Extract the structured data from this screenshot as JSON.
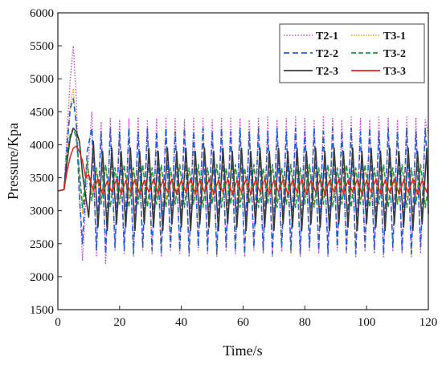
{
  "chart_data": {
    "type": "line",
    "title": "",
    "xlabel": "Time/s",
    "ylabel": "Pressure/Kpa",
    "xlim": [
      0,
      120
    ],
    "ylim": [
      1500,
      6000
    ],
    "xticks": [
      0,
      20,
      40,
      60,
      80,
      100,
      120
    ],
    "yticks": [
      1500,
      2000,
      2500,
      3000,
      3500,
      4000,
      4500,
      5000,
      5500,
      6000
    ],
    "grid": false,
    "legend": "top-right",
    "series": [
      {
        "name": "T2-1",
        "color": "#d14ad6",
        "dash": "1.5,2",
        "width": 1.4,
        "x": [
          0,
          2,
          3,
          4,
          5,
          6,
          7,
          8,
          9.5,
          11,
          12.5,
          14,
          15.5,
          17,
          18.5,
          20,
          21.5,
          23,
          24.5,
          26,
          27.5,
          29,
          30.5,
          32,
          33.5,
          35,
          36.5,
          38,
          39.5,
          41,
          42.5,
          44,
          45.5,
          47,
          48.5,
          50,
          51.5,
          53,
          54.5,
          56,
          57.5,
          59,
          60.5,
          62,
          63.5,
          65,
          66.5,
          68,
          69.5,
          71,
          72.5,
          74,
          75.5,
          77,
          78.5,
          80,
          81.5,
          83,
          84.5,
          86,
          87.5,
          89,
          90.5,
          92,
          93.5,
          95,
          96.5,
          98,
          99.5,
          101,
          102.5,
          104,
          105.5,
          107,
          108.5,
          110,
          111.5,
          113,
          114.5,
          116,
          117.5,
          119,
          120
        ],
        "y": [
          3300,
          3320,
          4200,
          5000,
          5500,
          4700,
          3200,
          2250,
          3500,
          4500,
          2300,
          4350,
          2200,
          4400,
          2400,
          4380,
          2350,
          4400,
          2300,
          4420,
          2400,
          4380,
          2350,
          4400,
          2300,
          4420,
          2380,
          4400,
          2350,
          4380,
          2300,
          4420,
          2400,
          4400,
          2350,
          4380,
          2300,
          4400,
          2380,
          4420,
          2350,
          4400,
          2300,
          4380,
          2400,
          4400,
          2350,
          4420,
          2300,
          4380,
          2380,
          4400,
          2350,
          4420,
          2300,
          4400,
          2380,
          4380,
          2350,
          4420,
          2300,
          4400,
          2400,
          4380,
          2350,
          4420,
          2300,
          4400,
          2380,
          4380,
          2350,
          4420,
          2300,
          4400,
          2380,
          4380,
          2350,
          4420,
          2300,
          4400,
          2350,
          4380,
          4150
        ]
      },
      {
        "name": "T3-1",
        "color": "#e0a800",
        "dash": "1.5,1.5",
        "width": 1.4,
        "x": [
          0,
          2,
          3,
          4,
          5,
          6,
          7,
          8,
          9.5,
          11,
          12.5,
          14,
          15.5,
          17,
          18.5,
          20,
          21.5,
          23,
          24.5,
          26,
          27.5,
          29,
          30.5,
          32,
          33.5,
          35,
          36.5,
          38,
          39.5,
          41,
          42.5,
          44,
          45.5,
          47,
          48.5,
          50,
          51.5,
          53,
          54.5,
          56,
          57.5,
          59,
          60.5,
          62,
          63.5,
          65,
          66.5,
          68,
          69.5,
          71,
          72.5,
          74,
          75.5,
          77,
          78.5,
          80,
          81.5,
          83,
          84.5,
          86,
          87.5,
          89,
          90.5,
          92,
          93.5,
          95,
          96.5,
          98,
          99.5,
          101,
          102.5,
          104,
          105.5,
          107,
          108.5,
          110,
          111.5,
          113,
          114.5,
          116,
          117.5,
          119,
          120
        ],
        "y": [
          3300,
          3320,
          3900,
          4600,
          4850,
          4300,
          3500,
          2950,
          3700,
          3250,
          3600,
          3150,
          3650,
          3200,
          3600,
          3100,
          3650,
          3200,
          3600,
          3150,
          3650,
          3100,
          3600,
          3200,
          3650,
          3150,
          3600,
          3100,
          3650,
          3200,
          3600,
          3150,
          3650,
          3100,
          3600,
          3200,
          3650,
          3150,
          3600,
          3100,
          3650,
          3200,
          3600,
          3150,
          3650,
          3100,
          3600,
          3200,
          3650,
          3150,
          3600,
          3100,
          3650,
          3200,
          3600,
          3150,
          3650,
          3100,
          3600,
          3200,
          3650,
          3150,
          3600,
          3100,
          3650,
          3200,
          3600,
          3150,
          3650,
          3100,
          3600,
          3200,
          3650,
          3150,
          3600,
          3100,
          3650,
          3200,
          3600,
          3150,
          3650,
          3100,
          3300
        ]
      },
      {
        "name": "T2-2",
        "color": "#1f5fd6",
        "dash": "7,4",
        "width": 1.6,
        "x": [
          0,
          2,
          3,
          4,
          5,
          6,
          7,
          8,
          9.5,
          11,
          12.5,
          14,
          15.5,
          17,
          18.5,
          20,
          21.5,
          23,
          24.5,
          26,
          27.5,
          29,
          30.5,
          32,
          33.5,
          35,
          36.5,
          38,
          39.5,
          41,
          42.5,
          44,
          45.5,
          47,
          48.5,
          50,
          51.5,
          53,
          54.5,
          56,
          57.5,
          59,
          60.5,
          62,
          63.5,
          65,
          66.5,
          68,
          69.5,
          71,
          72.5,
          74,
          75.5,
          77,
          78.5,
          80,
          81.5,
          83,
          84.5,
          86,
          87.5,
          89,
          90.5,
          92,
          93.5,
          95,
          96.5,
          98,
          99.5,
          101,
          102.5,
          104,
          105.5,
          107,
          108.5,
          110,
          111.5,
          113,
          114.5,
          116,
          117.5,
          119,
          120
        ],
        "y": [
          3300,
          3320,
          4000,
          4550,
          4700,
          4300,
          3200,
          2500,
          3900,
          4250,
          2400,
          4200,
          2350,
          4250,
          2450,
          4200,
          2400,
          4250,
          2350,
          4200,
          2450,
          4250,
          2400,
          4200,
          2350,
          4250,
          2450,
          4200,
          2400,
          4250,
          2350,
          4200,
          2450,
          4250,
          2400,
          4200,
          2350,
          4250,
          2450,
          4200,
          2400,
          4250,
          2350,
          4200,
          2450,
          4250,
          2400,
          4200,
          2350,
          4250,
          2450,
          4200,
          2400,
          4250,
          2350,
          4200,
          2450,
          4250,
          2400,
          4200,
          2350,
          4250,
          2450,
          4200,
          2400,
          4250,
          2350,
          4200,
          2450,
          4250,
          2400,
          4200,
          2350,
          4250,
          2450,
          4200,
          2400,
          4250,
          2350,
          4200,
          2450,
          4250,
          3400
        ]
      },
      {
        "name": "T3-2",
        "color": "#1a9a4a",
        "dash": "6,3",
        "width": 1.6,
        "x": [
          0,
          2,
          3,
          4,
          5,
          6,
          7,
          8,
          9.5,
          11,
          12.5,
          14,
          15.5,
          17,
          18.5,
          20,
          21.5,
          23,
          24.5,
          26,
          27.5,
          29,
          30.5,
          32,
          33.5,
          35,
          36.5,
          38,
          39.5,
          41,
          42.5,
          44,
          45.5,
          47,
          48.5,
          50,
          51.5,
          53,
          54.5,
          56,
          57.5,
          59,
          60.5,
          62,
          63.5,
          65,
          66.5,
          68,
          69.5,
          71,
          72.5,
          74,
          75.5,
          77,
          78.5,
          80,
          81.5,
          83,
          84.5,
          86,
          87.5,
          89,
          90.5,
          92,
          93.5,
          95,
          96.5,
          98,
          99.5,
          101,
          102.5,
          104,
          105.5,
          107,
          108.5,
          110,
          111.5,
          113,
          114.5,
          116,
          117.5,
          119,
          120
        ],
        "y": [
          3300,
          3320,
          3850,
          4150,
          4250,
          4100,
          3600,
          3050,
          3750,
          3150,
          3650,
          3100,
          3700,
          3050,
          3650,
          3100,
          3700,
          3050,
          3650,
          3100,
          3700,
          3050,
          3650,
          3100,
          3700,
          3050,
          3650,
          3100,
          3700,
          3050,
          3650,
          3100,
          3700,
          3050,
          3650,
          3100,
          3700,
          3050,
          3650,
          3100,
          3700,
          3050,
          3650,
          3100,
          3700,
          3050,
          3650,
          3100,
          3700,
          3050,
          3650,
          3100,
          3700,
          3050,
          3650,
          3100,
          3700,
          3050,
          3650,
          3100,
          3700,
          3050,
          3650,
          3100,
          3700,
          3050,
          3650,
          3100,
          3700,
          3050,
          3650,
          3100,
          3700,
          3050,
          3650,
          3100,
          3700,
          3050,
          3650,
          3100,
          3700,
          3050,
          3350
        ]
      },
      {
        "name": "T2-3",
        "color": "#3a3a3a",
        "dash": "",
        "width": 1.6,
        "x": [
          0,
          2,
          3,
          4,
          5,
          6,
          7,
          8,
          10,
          11.5,
          13,
          14.5,
          16,
          17.5,
          19,
          20.5,
          22,
          23.5,
          25,
          26.5,
          28,
          29.5,
          31,
          32.5,
          34,
          35.5,
          37,
          38.5,
          40,
          41.5,
          43,
          44.5,
          46,
          47.5,
          49,
          50.5,
          52,
          53.5,
          55,
          56.5,
          58,
          59.5,
          61,
          62.5,
          64,
          65.5,
          67,
          68.5,
          70,
          71.5,
          73,
          74.5,
          76,
          77.5,
          79,
          80.5,
          82,
          83.5,
          85,
          86.5,
          88,
          89.5,
          91,
          92.5,
          94,
          95.5,
          97,
          98.5,
          100,
          101.5,
          103,
          104.5,
          106,
          107.5,
          109,
          110.5,
          112,
          113.5,
          115,
          116.5,
          118,
          119.5,
          120
        ],
        "y": [
          3300,
          3320,
          3750,
          4100,
          4250,
          4200,
          4050,
          3550,
          2900,
          4050,
          2750,
          3900,
          2700,
          3950,
          2800,
          3900,
          2750,
          3950,
          2700,
          3900,
          2800,
          3950,
          2750,
          3900,
          2700,
          3950,
          2800,
          3900,
          2750,
          3950,
          2700,
          3900,
          2800,
          3950,
          2750,
          3900,
          2700,
          3950,
          2800,
          3900,
          2750,
          3950,
          2700,
          3900,
          2800,
          3950,
          2750,
          3900,
          2700,
          3950,
          2800,
          3900,
          2750,
          3950,
          2700,
          3900,
          2800,
          3950,
          2750,
          3900,
          2700,
          3950,
          2800,
          3900,
          2750,
          3950,
          2700,
          3900,
          2800,
          3950,
          2750,
          3900,
          2700,
          3950,
          2800,
          3900,
          2750,
          3950,
          2700,
          3900,
          2800,
          3950,
          2950
        ]
      },
      {
        "name": "T3-3",
        "color": "#e8231d",
        "dash": "",
        "width": 1.5,
        "x": [
          0,
          2,
          3,
          4,
          5,
          6,
          7,
          8,
          9,
          10,
          11.5,
          13,
          14.5,
          16,
          17.5,
          19,
          20.5,
          22,
          23.5,
          25,
          26.5,
          28,
          29.5,
          31,
          32.5,
          34,
          35.5,
          37,
          38.5,
          40,
          41.5,
          43,
          44.5,
          46,
          47.5,
          49,
          50.5,
          52,
          53.5,
          55,
          56.5,
          58,
          59.5,
          61,
          62.5,
          64,
          65.5,
          67,
          68.5,
          70,
          71.5,
          73,
          74.5,
          76,
          77.5,
          79,
          80.5,
          82,
          83.5,
          85,
          86.5,
          88,
          89.5,
          91,
          92.5,
          94,
          95.5,
          97,
          98.5,
          100,
          101.5,
          103,
          104.5,
          106,
          107.5,
          109,
          110.5,
          112,
          113.5,
          115,
          116.5,
          118,
          119.5,
          120
        ],
        "y": [
          3300,
          3320,
          3600,
          3820,
          3950,
          3980,
          3900,
          3750,
          3500,
          3550,
          3300,
          3480,
          3250,
          3450,
          3280,
          3480,
          3250,
          3460,
          3280,
          3480,
          3250,
          3460,
          3280,
          3480,
          3250,
          3460,
          3280,
          3480,
          3250,
          3460,
          3280,
          3480,
          3250,
          3460,
          3280,
          3480,
          3250,
          3460,
          3280,
          3480,
          3250,
          3460,
          3280,
          3480,
          3250,
          3460,
          3280,
          3480,
          3250,
          3460,
          3280,
          3480,
          3250,
          3460,
          3280,
          3480,
          3250,
          3460,
          3280,
          3480,
          3250,
          3460,
          3280,
          3480,
          3250,
          3460,
          3280,
          3480,
          3250,
          3460,
          3280,
          3480,
          3250,
          3460,
          3280,
          3480,
          3250,
          3460,
          3280,
          3480,
          3250,
          3460,
          3280,
          3430
        ]
      }
    ]
  }
}
